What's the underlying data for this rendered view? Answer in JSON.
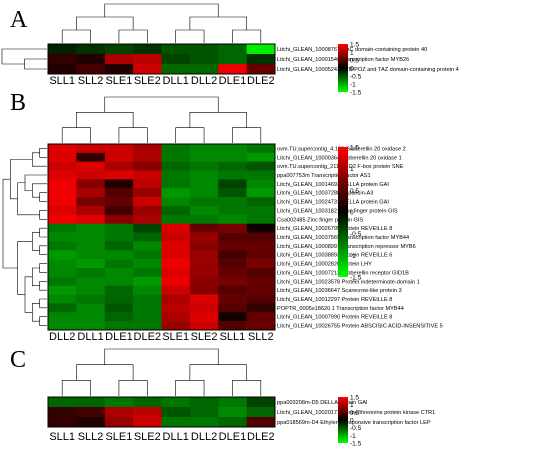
{
  "chart_data": [
    {
      "type": "heatmap",
      "panel": "A",
      "columns": [
        "SLL1",
        "SLL2",
        "SLE1",
        "SLE2",
        "DLL1",
        "DLL2",
        "DLE1",
        "DLE2"
      ],
      "rows": [
        "Litchi_GLEAN_10008767 NAC domain-containing protein 40",
        "Litchi_GLEAN_10001540 Transcription factor MYB26",
        "Litchi_GLEAN_10005243 BTB/POZ and TAZ domain-containing protein 4"
      ],
      "values": [
        [
          -0.2,
          -0.3,
          -0.4,
          -0.3,
          -0.5,
          -0.5,
          -0.6,
          -1.4
        ],
        [
          0.3,
          0.2,
          1.0,
          1.1,
          -0.4,
          -0.5,
          -0.6,
          -0.3
        ],
        [
          0.2,
          0.4,
          0.2,
          1.2,
          -0.6,
          -0.6,
          1.4,
          0.6
        ]
      ],
      "row_order": [
        2,
        1,
        0
      ],
      "color_scale": {
        "low": "#00ff00",
        "mid": "#000000",
        "high": "#ff0000",
        "ticks": [
          "1.5",
          "1",
          "0.5",
          "0",
          "-0.5",
          "-1",
          "-1.5"
        ],
        "min": -1.5,
        "max": 1.5
      }
    },
    {
      "type": "heatmap",
      "panel": "B",
      "columns": [
        "DLL2",
        "DLL1",
        "DLE1",
        "DLE2",
        "SLE1",
        "SLE2",
        "SLL1",
        "SLL2"
      ],
      "rows": [
        "ovm.TU.supercontig_4.180 Gibberellin 20 oxidase 2",
        "Litchi_GLEAN_10000364 Gibberellin 20 oxidase 1",
        "ovm.TU.supercontig_211.15-D2 F-box protein SNE",
        "ppa007753m Transcription factor AS1",
        "Litchi_GLEAN_10014693 DELLA protein GAI",
        "Litchi_GLEAN_10037288 Expansin-A3",
        "Litchi_GLEAN_10024731 DELLA protein GAI",
        "Litchi_GLEAN_10031821 Zinc finger protein GIS",
        "Csa002485 Zinc finger protein GIS",
        "Litchi_GLEAN_10026795 Protein REVEILLE 8",
        "Litchi_GLEAN_10037569 Transcription factor MYB44",
        "Litchi_GLEAN_10008991 Transcription repressor MYB6",
        "Litchi_GLEAN_10038893 Protein REVEILLE 6",
        "Litchi_GLEAN_10002826 Protein LHY",
        "Litchi_GLEAN_10007213 Gibberellin receptor GID1B",
        "Litchi_GLEAN_10023578 Protein indeterminate-domain 1",
        "Litchi_GLEAN_10036647 Scarecrow-like protein 3",
        "Litchi_GLEAN_10012297 Protein REVEILLE 8",
        "POPTR_0005s18620.1 Transcription factor MYB44",
        "Litchi_GLEAN_10007990 Protein REVEILLE 8",
        "Litchi_GLEAN_10026755 Protein ABSCISIC ACID-INSENSITIVE 5"
      ],
      "values": [
        [
          1.3,
          1.2,
          1.2,
          1.0,
          -0.7,
          -0.8,
          -0.8,
          -0.7
        ],
        [
          1.3,
          0.3,
          1.2,
          1.0,
          -0.7,
          -0.8,
          -0.8,
          -0.9
        ],
        [
          1.2,
          1.3,
          1.0,
          0.8,
          -0.6,
          -0.7,
          -0.6,
          -0.5
        ],
        [
          1.3,
          1.2,
          1.3,
          1.2,
          -0.7,
          -0.8,
          -0.7,
          -0.7
        ],
        [
          1.4,
          0.8,
          0.2,
          1.1,
          -0.7,
          -0.8,
          -0.4,
          -0.8
        ],
        [
          1.4,
          1.0,
          0.5,
          0.9,
          -0.9,
          -0.8,
          -0.5,
          -0.9
        ],
        [
          1.4,
          0.7,
          0.6,
          1.2,
          -0.8,
          -0.7,
          -0.7,
          -0.6
        ],
        [
          1.3,
          1.0,
          0.4,
          0.9,
          -0.6,
          -0.8,
          -0.7,
          -0.7
        ],
        [
          1.4,
          1.3,
          0.8,
          1.0,
          -0.7,
          -0.7,
          -0.8,
          -0.7
        ],
        [
          -0.7,
          -0.8,
          -0.7,
          -0.4,
          1.3,
          0.6,
          0.7,
          0.1
        ],
        [
          -0.8,
          -0.8,
          -0.7,
          -0.6,
          1.2,
          0.9,
          0.5,
          0.5
        ],
        [
          -0.7,
          -0.8,
          -0.6,
          -0.8,
          1.3,
          0.8,
          0.6,
          0.6
        ],
        [
          -0.9,
          -0.8,
          -0.8,
          -0.7,
          1.3,
          0.9,
          0.4,
          0.6
        ],
        [
          -0.8,
          -0.9,
          -0.7,
          -0.8,
          1.4,
          0.9,
          0.5,
          0.7
        ],
        [
          -0.8,
          -0.7,
          -0.8,
          -0.7,
          1.3,
          0.9,
          0.6,
          0.5
        ],
        [
          -0.7,
          -0.8,
          -0.8,
          -0.9,
          1.4,
          0.8,
          0.7,
          0.6
        ],
        [
          -0.9,
          -0.8,
          -0.6,
          -0.8,
          1.2,
          0.8,
          0.5,
          0.6
        ],
        [
          -0.8,
          -0.7,
          -0.6,
          -0.7,
          1.0,
          1.3,
          0.6,
          0.5
        ],
        [
          -0.6,
          -0.8,
          -0.5,
          -0.7,
          1.1,
          1.2,
          0.5,
          0.3
        ],
        [
          -0.8,
          -0.8,
          -0.6,
          -0.7,
          1.0,
          1.3,
          0.1,
          0.6
        ],
        [
          -0.8,
          -0.8,
          -0.7,
          -0.7,
          0.9,
          1.2,
          0.5,
          0.6
        ]
      ],
      "color_scale": {
        "low": "#00ff00",
        "mid": "#000000",
        "high": "#ff0000",
        "ticks": [
          "1.5",
          "1",
          "0.5",
          "0",
          "-0.5",
          "-1",
          "-1.5"
        ],
        "min": -1.5,
        "max": 1.5
      }
    },
    {
      "type": "heatmap",
      "panel": "C",
      "columns": [
        "SLL1",
        "SLL2",
        "SLE1",
        "SLE2",
        "DLL1",
        "DLL2",
        "DLE1",
        "DLE2"
      ],
      "rows": [
        "ppa003208m-D5 DELLA protein GAI",
        "Litchi_GLEAN_10020171 Serine/threonine protein kinase CTR1",
        "ppa018569m-D4 Ethylene-responsive transcription factor LEP"
      ],
      "values": [
        [
          -0.6,
          -0.6,
          -0.7,
          -0.6,
          -0.7,
          -0.6,
          -0.7,
          -0.4
        ],
        [
          0.3,
          0.4,
          1.0,
          1.1,
          -0.5,
          -0.6,
          -0.8,
          -0.6
        ],
        [
          0.3,
          0.2,
          0.9,
          1.2,
          -0.7,
          -0.7,
          -0.6,
          0.5
        ]
      ],
      "color_scale": {
        "low": "#00ff00",
        "mid": "#000000",
        "high": "#ff0000",
        "ticks": [
          "1.5",
          "1",
          "0.5",
          "0",
          "-0.5",
          "-1",
          "-1.5"
        ],
        "min": -1.5,
        "max": 1.5
      }
    }
  ]
}
